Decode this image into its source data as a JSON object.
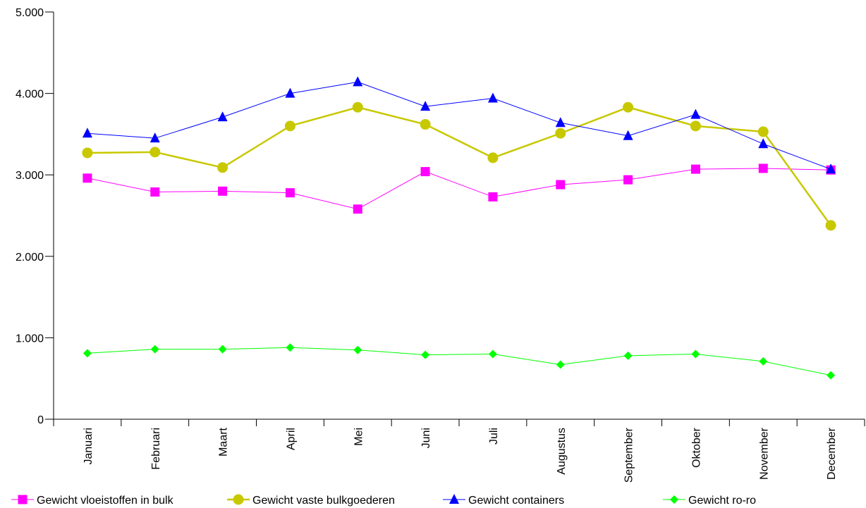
{
  "chart_data": {
    "type": "line",
    "title": "",
    "xlabel": "",
    "ylabel": "",
    "ylim": [
      0,
      5000
    ],
    "yticks": [
      {
        "value": 0,
        "label": "0"
      },
      {
        "value": 1000,
        "label": "1.000"
      },
      {
        "value": 2000,
        "label": "2.000"
      },
      {
        "value": 3000,
        "label": "3.000"
      },
      {
        "value": 4000,
        "label": "4.000"
      },
      {
        "value": 5000,
        "label": "5.000"
      }
    ],
    "grid": false,
    "legend_position": "bottom",
    "categories": [
      "Januari",
      "Februari",
      "Maart",
      "April",
      "Mei",
      "Juni",
      "Juli",
      "Augustus",
      "September",
      "Oktober",
      "November",
      "December"
    ],
    "series": [
      {
        "name": "Gewicht vloeistoffen in bulk",
        "color": "#ff00ff",
        "marker": "square",
        "values": [
          2960,
          2790,
          2800,
          2780,
          2580,
          3040,
          2730,
          2880,
          2940,
          3070,
          3080,
          3060
        ]
      },
      {
        "name": "Gewicht vaste bulkgoederen",
        "color": "#c8c800",
        "marker": "circle",
        "values": [
          3270,
          3280,
          3090,
          3600,
          3830,
          3620,
          3210,
          3510,
          3830,
          3600,
          3530,
          2380
        ]
      },
      {
        "name": "Gewicht containers",
        "color": "#0000ff",
        "marker": "triangle",
        "values": [
          3510,
          3450,
          3710,
          4000,
          4140,
          3840,
          3940,
          3640,
          3480,
          3740,
          3380,
          3070
        ]
      },
      {
        "name": "Gewicht ro-ro",
        "color": "#00ff00",
        "marker": "diamond",
        "values": [
          810,
          860,
          860,
          880,
          850,
          790,
          800,
          670,
          780,
          800,
          710,
          540
        ]
      }
    ]
  }
}
